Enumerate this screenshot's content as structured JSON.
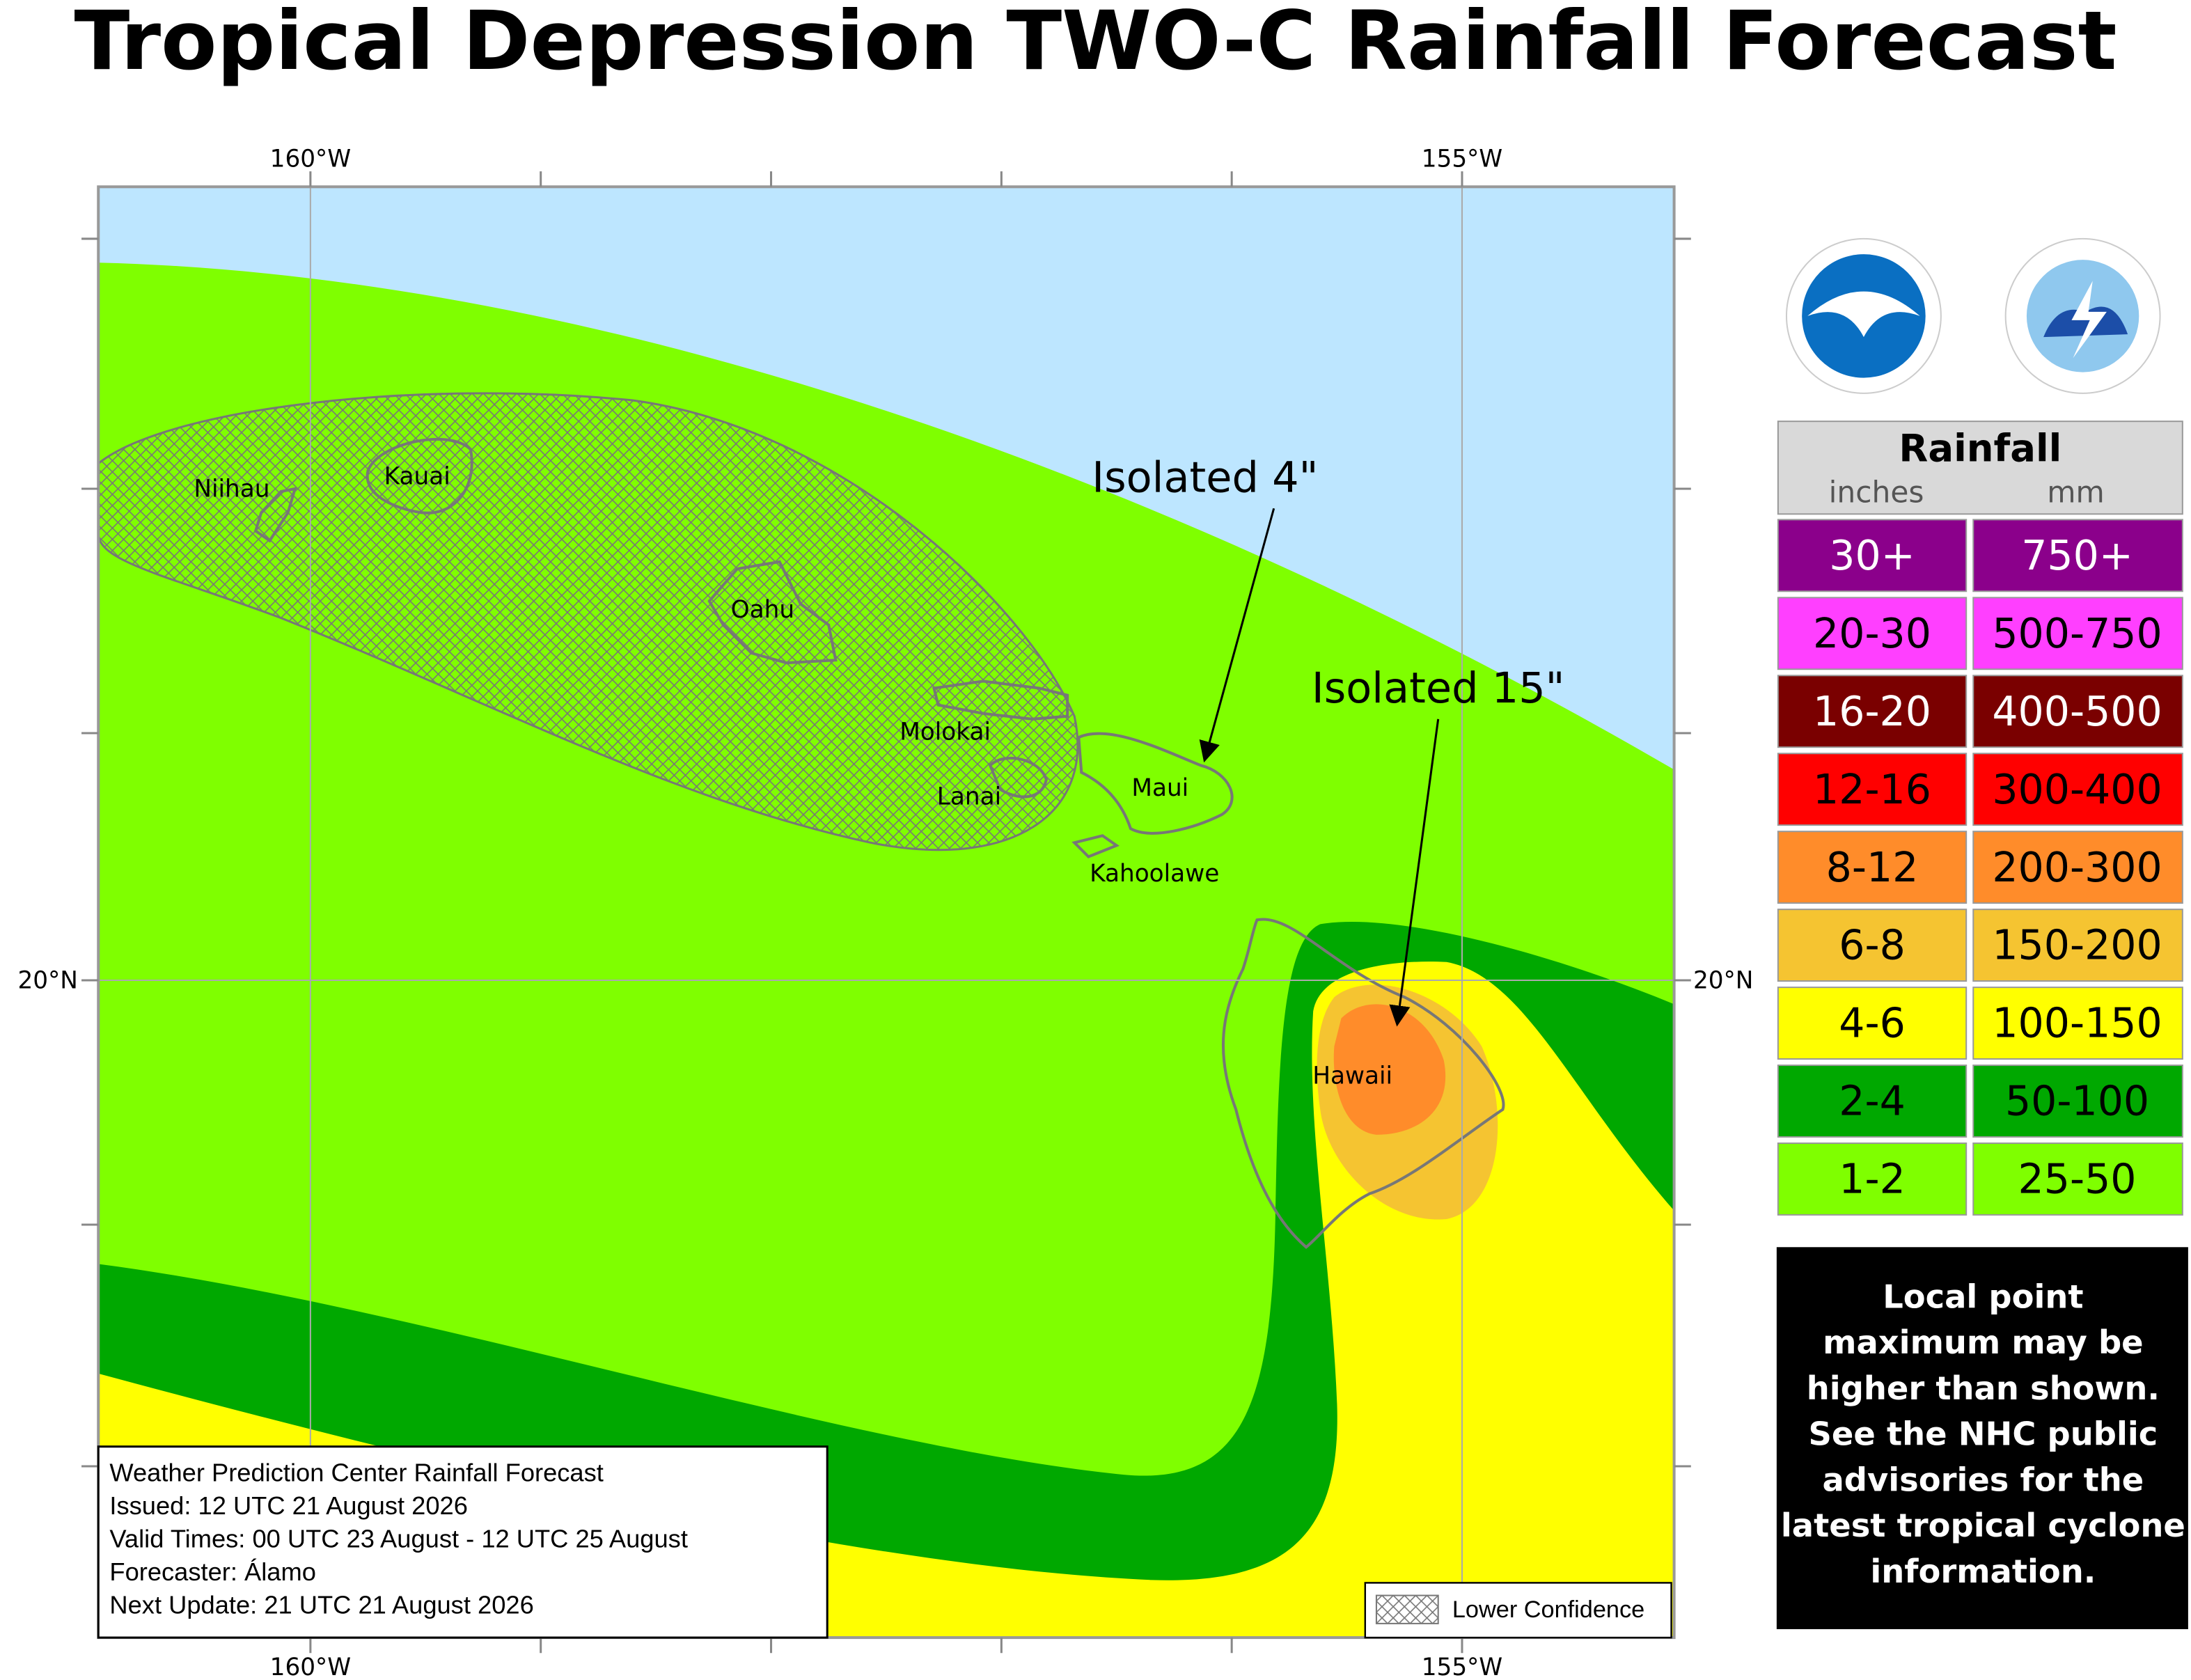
{
  "title": "Tropical Depression TWO-C Rainfall Forecast",
  "axes": {
    "top": [
      "160°W",
      "155°W"
    ],
    "bottom": [
      "160°W",
      "155°W"
    ],
    "left": [
      "20°N"
    ],
    "right": [
      "20°N"
    ]
  },
  "islands": [
    "Niihau",
    "Kauai",
    "Oahu",
    "Molokai",
    "Lanai",
    "Maui",
    "Kahoolawe",
    "Hawaii"
  ],
  "annotations": [
    "Isolated 4\"",
    "Isolated 15\""
  ],
  "legend": {
    "title": "Rainfall",
    "units": [
      "inches",
      "mm"
    ],
    "rows": [
      {
        "inches": "30+",
        "mm": "750+",
        "color": "#8b008b",
        "text_color": "#ffffff"
      },
      {
        "inches": "20-30",
        "mm": "500-750",
        "color": "#ff3fff",
        "text_color": "#000000"
      },
      {
        "inches": "16-20",
        "mm": "400-500",
        "color": "#7a0000",
        "text_color": "#ffffff"
      },
      {
        "inches": "12-16",
        "mm": "300-400",
        "color": "#ff0000",
        "text_color": "#000000"
      },
      {
        "inches": "8-12",
        "mm": "200-300",
        "color": "#ff8c2a",
        "text_color": "#000000"
      },
      {
        "inches": "6-8",
        "mm": "150-200",
        "color": "#f5c431",
        "text_color": "#000000"
      },
      {
        "inches": "4-6",
        "mm": "100-150",
        "color": "#ffff00",
        "text_color": "#000000"
      },
      {
        "inches": "2-4",
        "mm": "50-100",
        "color": "#00a800",
        "text_color": "#000000"
      },
      {
        "inches": "1-2",
        "mm": "25-50",
        "color": "#7fff00",
        "text_color": "#000000"
      }
    ]
  },
  "disclaimer": [
    "Local point",
    "maximum may be",
    "higher than shown.",
    "See the NHC public",
    "advisories for the",
    "latest tropical cyclone",
    "information."
  ],
  "info": [
    "Weather Prediction Center Rainfall Forecast",
    "Issued: 12 UTC 21 August 2026",
    "Valid Times: 00 UTC 23 August - 12 UTC 25 August",
    "Forecaster: Álamo",
    "Next Update: 21 UTC 21 August 2026"
  ],
  "hatch_legend": "Lower Confidence"
}
